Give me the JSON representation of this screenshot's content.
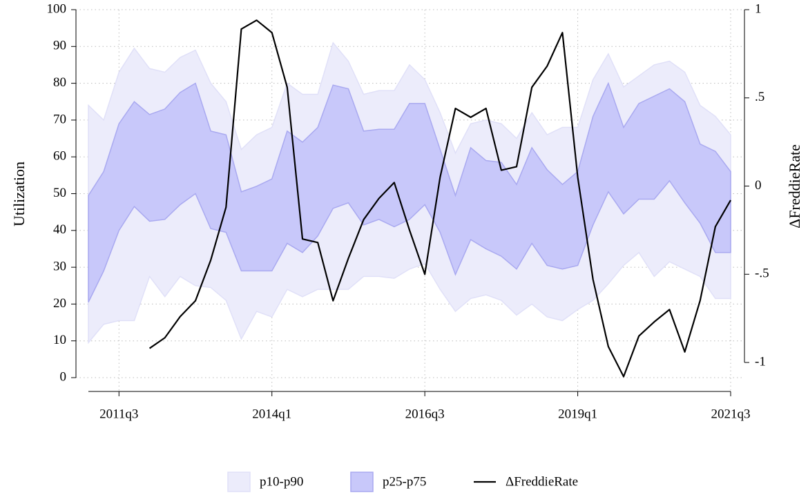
{
  "chart_data": {
    "type": "band-line",
    "ylabel": "Utilization",
    "y2label": "ΔFreddieRate",
    "x": [
      "2011q1",
      "2011q2",
      "2011q3",
      "2011q4",
      "2012q1",
      "2012q2",
      "2012q3",
      "2012q4",
      "2013q1",
      "2013q2",
      "2013q3",
      "2013q4",
      "2014q1",
      "2014q2",
      "2014q3",
      "2014q4",
      "2015q1",
      "2015q2",
      "2015q3",
      "2015q4",
      "2016q1",
      "2016q2",
      "2016q3",
      "2016q4",
      "2017q1",
      "2017q2",
      "2017q3",
      "2017q4",
      "2018q1",
      "2018q2",
      "2018q3",
      "2018q4",
      "2019q1",
      "2019q2",
      "2019q3",
      "2019q4",
      "2020q1",
      "2020q2",
      "2020q3",
      "2020q4",
      "2021q1",
      "2021q2",
      "2021q3"
    ],
    "xticks": [
      "2011q3",
      "2014q1",
      "2016q3",
      "2019q1",
      "2021q3"
    ],
    "ylim": [
      0,
      100
    ],
    "yticks": [
      0,
      10,
      20,
      30,
      40,
      50,
      60,
      70,
      80,
      90,
      100
    ],
    "y2lim": [
      -1.086,
      1
    ],
    "y2ticks": [
      {
        "value": -1,
        "label": "-1"
      },
      {
        "value": -0.5,
        "label": "-.5"
      },
      0,
      {
        "value": 0.5,
        "label": ".5"
      },
      1
    ],
    "grid": true,
    "legend": "bottom",
    "series": [
      {
        "name": "p10-p90",
        "color": "#ececfb",
        "stroke": "#e0e0f8",
        "lower": [
          9.5,
          14.5,
          15.5,
          15.5,
          27.5,
          22,
          27.5,
          25,
          24.5,
          21,
          10.5,
          18,
          16.5,
          24,
          22,
          24,
          24,
          24,
          27.5,
          27.5,
          27,
          29.5,
          31,
          24,
          18,
          21.5,
          22.5,
          21,
          17,
          20,
          16.5,
          15.5,
          18.5,
          21,
          25.5,
          30.5,
          34,
          27.5,
          31.5,
          29.5,
          27.5,
          21.5,
          21.5
        ],
        "upper": [
          74,
          70,
          83,
          89.5,
          84,
          83,
          87,
          89,
          80,
          75,
          62,
          66,
          68,
          80,
          77,
          77,
          91,
          86,
          77,
          78,
          78,
          85,
          81,
          72,
          61,
          69,
          70,
          69,
          65,
          72,
          66,
          68,
          68,
          81,
          88,
          79,
          82,
          85,
          86,
          83,
          74,
          71,
          66
        ]
      },
      {
        "name": "p25-p75",
        "color": "#c8c8fa",
        "stroke": "#a9a9f0",
        "lower": [
          20.5,
          29,
          40,
          46.5,
          42.5,
          43,
          47,
          50,
          40.5,
          39.5,
          29,
          29,
          29,
          36.5,
          34,
          38.5,
          46,
          47.5,
          41.5,
          43,
          41,
          43,
          47,
          39.5,
          28,
          37.5,
          35,
          33,
          29.5,
          36.5,
          30.5,
          29.5,
          30.5,
          41.5,
          50.5,
          44.5,
          48.5,
          48.5,
          53.5,
          47.5,
          42,
          34,
          34
        ],
        "upper": [
          49.5,
          56,
          69,
          75,
          71.5,
          73,
          77.5,
          80,
          67,
          66,
          50.5,
          52,
          54,
          67,
          64,
          68,
          79.5,
          78.5,
          67,
          67.5,
          67.5,
          74.5,
          74.5,
          62,
          49.5,
          62.5,
          59,
          58.5,
          52.5,
          62.5,
          56.5,
          52.5,
          56,
          71,
          80,
          68,
          74.5,
          76.5,
          78.5,
          75,
          63.5,
          61.5,
          56
        ]
      },
      {
        "name": "ΔFreddieRate",
        "color": "#000000",
        "axis": "y2",
        "values": [
          null,
          null,
          null,
          null,
          -0.92,
          -0.86,
          -0.74,
          -0.65,
          -0.42,
          -0.12,
          0.89,
          0.94,
          0.87,
          0.56,
          -0.3,
          -0.32,
          -0.65,
          -0.41,
          -0.19,
          -0.07,
          0.02,
          -0.25,
          -0.5,
          0.05,
          0.44,
          0.39,
          0.44,
          0.09,
          0.11,
          0.56,
          0.68,
          0.87,
          0.05,
          -0.53,
          -0.91,
          -1.08,
          -0.85,
          -0.77,
          -0.7,
          -0.94,
          -0.65,
          -0.23,
          -0.08
        ]
      }
    ]
  }
}
